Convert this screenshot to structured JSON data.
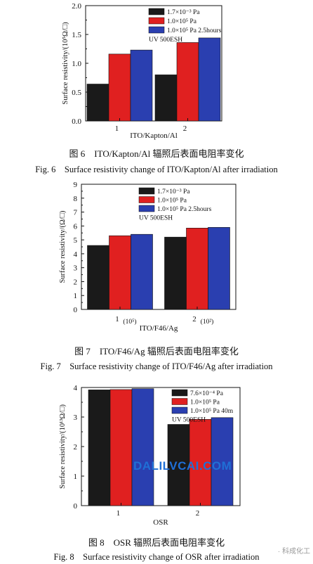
{
  "colors": {
    "black": "#1a1a1a",
    "red": "#e02020",
    "blue": "#2a3fb0"
  },
  "chart_data": [
    {
      "type": "bar",
      "ylabel": "Surface resistivity/(10⁵Ω/□)",
      "xlabel": "ITO/Kapton/Al",
      "categories": [
        "1",
        "2"
      ],
      "category_notes": [
        "",
        ""
      ],
      "ylim": [
        0,
        2.0
      ],
      "yticks": [
        "0.0",
        "0.5",
        "1.0",
        "1.5",
        "2.0"
      ],
      "series": [
        {
          "name": "1.7×10⁻³ Pa",
          "color": "black",
          "values": [
            0.64,
            0.8
          ]
        },
        {
          "name": "1.0×10⁵ Pa",
          "color": "red",
          "values": [
            1.16,
            1.36
          ]
        },
        {
          "name": "1.0×10⁵ Pa 2.5hours",
          "color": "blue",
          "values": [
            1.23,
            1.44
          ]
        }
      ],
      "legend_note": "UV 500ESH",
      "caption_cn": "图 6　ITO/Kapton/Al 辐照后表面电阻率变化",
      "caption_en": "Fig. 6　Surface resistivity change of ITO/Kapton/Al after irradiation"
    },
    {
      "type": "bar",
      "ylabel": "Surface resistivity/(Ω/□)",
      "xlabel": "ITO/F46/Ag",
      "categories": [
        "1",
        "2"
      ],
      "category_notes": [
        "(10⁵)",
        "(10²)"
      ],
      "ylim": [
        0,
        9
      ],
      "yticks": [
        "0",
        "1",
        "2",
        "3",
        "4",
        "5",
        "6",
        "7",
        "8",
        "9"
      ],
      "series": [
        {
          "name": "1.7×10⁻³ Pa",
          "color": "black",
          "values": [
            4.6,
            5.2
          ]
        },
        {
          "name": "1.0×10⁵ Pa",
          "color": "red",
          "values": [
            5.3,
            5.85
          ]
        },
        {
          "name": "1.0×10⁵ Pa 2.5hours",
          "color": "blue",
          "values": [
            5.4,
            5.9
          ]
        }
      ],
      "legend_note": "UV 500ESH",
      "caption_cn": "图 7　ITO/F46/Ag 辐照后表面电阻率变化",
      "caption_en": "Fig. 7　Surface resistivity change of ITO/F46/Ag after irradiation"
    },
    {
      "type": "bar",
      "ylabel": "Surface resistivity/(10¹³Ω/□)",
      "xlabel": "OSR",
      "categories": [
        "1",
        "2"
      ],
      "category_notes": [
        "",
        ""
      ],
      "ylim": [
        0,
        4
      ],
      "yticks": [
        "0",
        "1",
        "2",
        "3",
        "4"
      ],
      "series": [
        {
          "name": "7.6×10⁻⁴ Pa",
          "color": "black",
          "values": [
            3.92,
            2.75
          ]
        },
        {
          "name": "1.0×10⁵ Pa",
          "color": "red",
          "values": [
            3.93,
            2.92
          ]
        },
        {
          "name": "1.0×10⁵ Pa 40m",
          "color": "blue",
          "values": [
            3.96,
            2.98
          ]
        }
      ],
      "legend_note": "UV 500ESH",
      "caption_cn": "图 8　OSR 辐照后表面电阻率变化",
      "caption_en": "Fig. 8　Surface resistivity change of OSR after irradiation"
    }
  ],
  "watermark": "DALILVCAI.COM",
  "corner_mark": "· 科成化工"
}
